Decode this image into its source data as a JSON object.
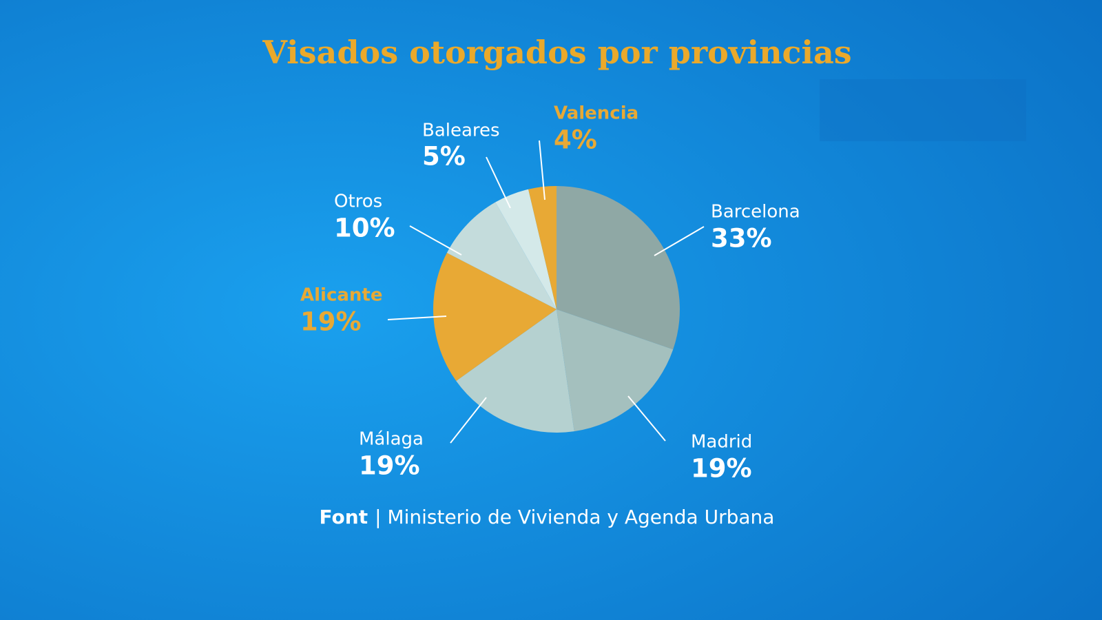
{
  "chart_data": {
    "type": "pie",
    "title": "Visados otorgados por provincias",
    "categories": [
      "Barcelona",
      "Madrid",
      "Málaga",
      "Alicante",
      "Otros",
      "Baleares",
      "Valencia"
    ],
    "values": [
      33,
      19,
      19,
      19,
      10,
      5,
      4
    ],
    "value_labels": [
      "33%",
      "19%",
      "19%",
      "19%",
      "10%",
      "5%",
      "4%"
    ],
    "colors": [
      "#8fa8a5",
      "#a4c0be",
      "#b5d1d0",
      "#e8a935",
      "#c4dcdc",
      "#d4e9e9",
      "#e8a935"
    ],
    "label_colors": [
      "#ffffff",
      "#ffffff",
      "#ffffff",
      "#e8a935",
      "#ffffff",
      "#ffffff",
      "#e8a935"
    ],
    "source_label": "Font",
    "source": "| Ministerio de Vivienda y Agenda Urbana"
  }
}
